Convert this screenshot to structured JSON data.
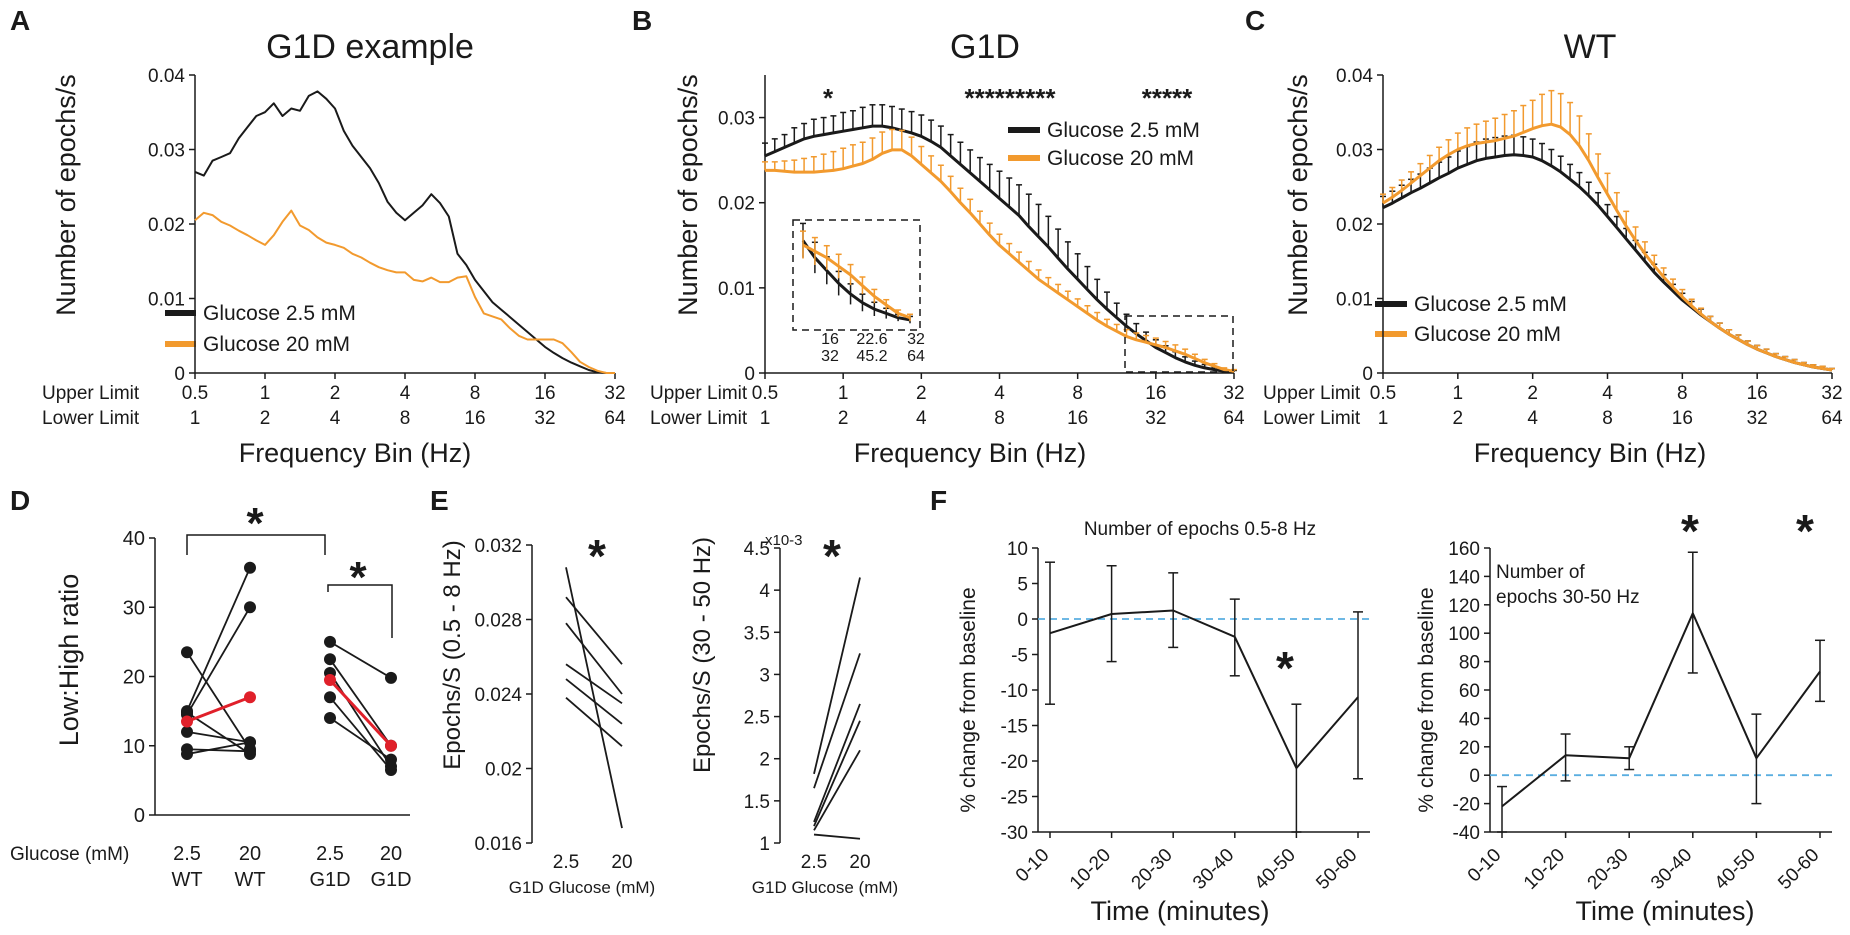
{
  "colors": {
    "black": "#1a1a1a",
    "orange": "#f29a2e",
    "red": "#e0202a",
    "blue": "#5aaee0"
  },
  "row_labels": {
    "upper": "Upper Limit",
    "lower": "Lower Limit",
    "freq_axis": "Frequency Bin (Hz)"
  },
  "chart_data": [
    {
      "panel": "A",
      "type": "line",
      "title": "G1D example",
      "ylabel": "Number of epochs/s",
      "xlabel": "Frequency Bin (Hz)",
      "ylim": [
        0,
        0.04
      ],
      "yticks": [
        "0",
        "0.01",
        "0.02",
        "0.03",
        "0.04"
      ],
      "upper_ticks": [
        "0.5",
        "1",
        "2",
        "4",
        "8",
        "16",
        "32"
      ],
      "lower_ticks": [
        "1",
        "2",
        "4",
        "8",
        "16",
        "32",
        "64"
      ],
      "legend": [
        "Glucose 2.5 mM",
        "Glucose 20 mM"
      ],
      "series": [
        {
          "name": "Glucose 2.5 mM",
          "color": "#1a1a1a",
          "values": [
            0.027,
            0.0265,
            0.0285,
            0.029,
            0.0295,
            0.0315,
            0.033,
            0.0345,
            0.035,
            0.0362,
            0.0345,
            0.0355,
            0.0352,
            0.0372,
            0.0378,
            0.0368,
            0.0355,
            0.0325,
            0.0305,
            0.029,
            0.0275,
            0.0255,
            0.023,
            0.0215,
            0.0205,
            0.0215,
            0.0225,
            0.024,
            0.0228,
            0.021,
            0.016,
            0.0145,
            0.0125,
            0.011,
            0.0095,
            0.0085,
            0.0075,
            0.0065,
            0.0055,
            0.0045,
            0.0035,
            0.0027,
            0.002,
            0.0014,
            0.0009,
            0.0004,
            0.0001,
            0,
            0
          ]
        },
        {
          "name": "Glucose 20 mM",
          "color": "#f29a2e",
          "values": [
            0.0205,
            0.0215,
            0.0212,
            0.0203,
            0.0198,
            0.0191,
            0.0185,
            0.0178,
            0.0172,
            0.0185,
            0.0203,
            0.0218,
            0.0198,
            0.0192,
            0.0182,
            0.0175,
            0.0172,
            0.0168,
            0.016,
            0.0155,
            0.0148,
            0.0142,
            0.0138,
            0.0135,
            0.0135,
            0.0125,
            0.0123,
            0.0128,
            0.0122,
            0.0122,
            0.0128,
            0.013,
            0.0102,
            0.008,
            0.0076,
            0.0072,
            0.006,
            0.005,
            0.0045,
            0.0045,
            0.0045,
            0.0045,
            0.004,
            0.0028,
            0.0015,
            0.0008,
            0.0003,
            0,
            0
          ]
        }
      ]
    },
    {
      "panel": "B",
      "type": "line",
      "title": "G1D",
      "ylabel": "Number of epochs/s",
      "xlabel": "Frequency Bin (Hz)",
      "ylim": [
        0,
        0.035
      ],
      "yticks": [
        "0",
        "0.01",
        "0.02",
        "0.03"
      ],
      "upper_ticks": [
        "0.5",
        "1",
        "2",
        "4",
        "8",
        "16",
        "32"
      ],
      "lower_ticks": [
        "1",
        "2",
        "4",
        "8",
        "16",
        "32",
        "64"
      ],
      "legend": [
        "Glucose 2.5 mM",
        "Glucose 20 mM"
      ],
      "significance": [
        "*",
        "*********",
        "*****"
      ],
      "inset_ticks_top": [
        "16",
        "22.6",
        "32"
      ],
      "inset_ticks_bottom": [
        "32",
        "45.2",
        "64"
      ],
      "series": [
        {
          "name": "Glucose 2.5 mM",
          "color": "#1a1a1a",
          "values": [
            0.0255,
            0.026,
            0.0265,
            0.027,
            0.0275,
            0.0278,
            0.028,
            0.0282,
            0.0284,
            0.0286,
            0.0288,
            0.029,
            0.029,
            0.0288,
            0.0285,
            0.0282,
            0.0278,
            0.0272,
            0.0265,
            0.0255,
            0.0245,
            0.0235,
            0.0225,
            0.0215,
            0.0205,
            0.0195,
            0.0185,
            0.0172,
            0.016,
            0.0148,
            0.0135,
            0.0122,
            0.011,
            0.0098,
            0.0086,
            0.0075,
            0.0065,
            0.0055,
            0.0046,
            0.0038,
            0.003,
            0.0024,
            0.0018,
            0.0013,
            0.0009,
            0.0006,
            0.0004,
            0.0002,
            0.0001
          ],
          "errors": [
            0.0015,
            0.0015,
            0.0015,
            0.0018,
            0.0018,
            0.002,
            0.002,
            0.002,
            0.0022,
            0.0022,
            0.0024,
            0.0025,
            0.0025,
            0.0025,
            0.0025,
            0.0025,
            0.0025,
            0.0025,
            0.0025,
            0.0025,
            0.0026,
            0.0027,
            0.0028,
            0.003,
            0.0032,
            0.0034,
            0.0036,
            0.0038,
            0.0038,
            0.0036,
            0.0034,
            0.0032,
            0.003,
            0.0027,
            0.0024,
            0.002,
            0.0017,
            0.0014,
            0.0012,
            0.001,
            0.0009,
            0.0008,
            0.0007,
            0.0006,
            0.0005,
            0.0004,
            0.0003,
            0.0002,
            0.0002
          ]
        },
        {
          "name": "Glucose 20 mM",
          "color": "#f29a2e",
          "values": [
            0.0238,
            0.0238,
            0.0237,
            0.0236,
            0.0236,
            0.0236,
            0.0237,
            0.0238,
            0.024,
            0.0243,
            0.0246,
            0.0251,
            0.0258,
            0.0262,
            0.0262,
            0.0255,
            0.0245,
            0.0235,
            0.0225,
            0.0213,
            0.02,
            0.0188,
            0.0175,
            0.0162,
            0.015,
            0.014,
            0.013,
            0.012,
            0.011,
            0.0102,
            0.0094,
            0.0086,
            0.0078,
            0.007,
            0.0062,
            0.0055,
            0.0049,
            0.0043,
            0.0039,
            0.0036,
            0.0033,
            0.003,
            0.0026,
            0.0022,
            0.0017,
            0.0012,
            0.0008,
            0.0004,
            0.0002
          ],
          "errors": [
            0.001,
            0.001,
            0.0012,
            0.0014,
            0.0016,
            0.0018,
            0.002,
            0.0022,
            0.0024,
            0.0025,
            0.0025,
            0.0025,
            0.0025,
            0.0024,
            0.0023,
            0.0022,
            0.0021,
            0.002,
            0.0019,
            0.0018,
            0.0017,
            0.0016,
            0.0015,
            0.0014,
            0.0013,
            0.0012,
            0.0012,
            0.0011,
            0.0011,
            0.001,
            0.001,
            0.001,
            0.0009,
            0.0009,
            0.0009,
            0.0008,
            0.0008,
            0.0008,
            0.0008,
            0.0008,
            0.0008,
            0.0007,
            0.0007,
            0.0006,
            0.0005,
            0.0004,
            0.0003,
            0.0002,
            0.0002
          ]
        }
      ]
    },
    {
      "panel": "C",
      "type": "line",
      "title": "WT",
      "ylabel": "Number of epochs/s",
      "xlabel": "Frequency Bin (Hz)",
      "ylim": [
        0,
        0.04
      ],
      "yticks": [
        "0",
        "0.01",
        "0.02",
        "0.03",
        "0.04"
      ],
      "upper_ticks": [
        "0.5",
        "1",
        "2",
        "4",
        "8",
        "16",
        "32"
      ],
      "lower_ticks": [
        "1",
        "2",
        "4",
        "8",
        "16",
        "32",
        "64"
      ],
      "legend": [
        "Glucose 2.5 mM",
        "Glucose 20 mM"
      ],
      "series": [
        {
          "name": "Glucose 2.5 mM",
          "color": "#1a1a1a",
          "values": [
            0.0222,
            0.0228,
            0.0235,
            0.0242,
            0.0248,
            0.0255,
            0.0262,
            0.0268,
            0.0275,
            0.028,
            0.0285,
            0.0288,
            0.029,
            0.0292,
            0.0293,
            0.0292,
            0.029,
            0.0285,
            0.0278,
            0.027,
            0.026,
            0.025,
            0.0238,
            0.0225,
            0.021,
            0.0195,
            0.018,
            0.0165,
            0.015,
            0.0135,
            0.0122,
            0.011,
            0.0098,
            0.0088,
            0.0078,
            0.0069,
            0.006,
            0.0052,
            0.0045,
            0.0038,
            0.0032,
            0.0027,
            0.0022,
            0.0018,
            0.0014,
            0.0011,
            0.0008,
            0.0006,
            0.0004
          ],
          "errors": [
            0.0015,
            0.0016,
            0.0017,
            0.0018,
            0.0019,
            0.002,
            0.0021,
            0.0022,
            0.0023,
            0.0024,
            0.0025,
            0.0026,
            0.0026,
            0.0026,
            0.0026,
            0.0025,
            0.0024,
            0.0023,
            0.0022,
            0.0021,
            0.002,
            0.0019,
            0.0018,
            0.0017,
            0.0016,
            0.0015,
            0.0014,
            0.0013,
            0.0012,
            0.0011,
            0.001,
            0.0009,
            0.0009,
            0.0008,
            0.0008,
            0.0007,
            0.0007,
            0.0006,
            0.0006,
            0.0005,
            0.0005,
            0.0005,
            0.0004,
            0.0004,
            0.0004,
            0.0003,
            0.0003,
            0.0003,
            0.0002
          ]
        },
        {
          "name": "Glucose 20 mM",
          "color": "#f29a2e",
          "values": [
            0.0228,
            0.0236,
            0.0245,
            0.0255,
            0.0265,
            0.0275,
            0.0285,
            0.0293,
            0.03,
            0.0305,
            0.0308,
            0.031,
            0.0312,
            0.0315,
            0.0318,
            0.0323,
            0.0328,
            0.0332,
            0.0334,
            0.033,
            0.032,
            0.0305,
            0.0285,
            0.0262,
            0.024,
            0.0218,
            0.0197,
            0.0178,
            0.016,
            0.0144,
            0.0129,
            0.0115,
            0.0102,
            0.009,
            0.0079,
            0.0069,
            0.006,
            0.0052,
            0.0045,
            0.0038,
            0.0032,
            0.0027,
            0.0022,
            0.0018,
            0.0014,
            0.0011,
            0.0008,
            0.0006,
            0.0004
          ],
          "errors": [
            0.0012,
            0.0013,
            0.0014,
            0.0015,
            0.0016,
            0.0017,
            0.0018,
            0.002,
            0.0022,
            0.0024,
            0.0026,
            0.0028,
            0.003,
            0.0032,
            0.0034,
            0.0036,
            0.0038,
            0.0042,
            0.0045,
            0.0045,
            0.0043,
            0.004,
            0.0036,
            0.0032,
            0.0028,
            0.0024,
            0.002,
            0.0018,
            0.0016,
            0.0014,
            0.0012,
            0.0011,
            0.001,
            0.0009,
            0.0008,
            0.0007,
            0.0007,
            0.0006,
            0.0006,
            0.0005,
            0.0005,
            0.0005,
            0.0004,
            0.0004,
            0.0004,
            0.0003,
            0.0003,
            0.0003,
            0.0002
          ]
        }
      ]
    },
    {
      "panel": "D",
      "type": "scatter",
      "ylabel": "Low:High ratio",
      "ylim": [
        0,
        40
      ],
      "yticks": [
        "0",
        "10",
        "20",
        "30",
        "40"
      ],
      "row_label": "Glucose (mM)",
      "categories": [
        [
          "2.5",
          "WT"
        ],
        [
          "20",
          "WT"
        ],
        [
          "2.5",
          "G1D"
        ],
        [
          "20",
          "G1D"
        ]
      ],
      "pairs": [
        {
          "group": "WT",
          "from": 23.5,
          "to": 9.5
        },
        {
          "group": "WT",
          "from": 15,
          "to": 35.7
        },
        {
          "group": "WT",
          "from": 14.5,
          "to": 30
        },
        {
          "group": "WT",
          "from": 12,
          "to": 10.5
        },
        {
          "group": "WT",
          "from": 9.5,
          "to": 9.2
        },
        {
          "group": "WT",
          "from": 8.8,
          "to": 10.5
        },
        {
          "group": "WT",
          "from": 14.8,
          "to": 8.8
        },
        {
          "group": "WT",
          "from": 13.5,
          "to": 17,
          "mean": true
        },
        {
          "group": "G1D",
          "from": 25,
          "to": 19.8
        },
        {
          "group": "G1D",
          "from": 22.5,
          "to": 10
        },
        {
          "group": "G1D",
          "from": 20.5,
          "to": 7
        },
        {
          "group": "G1D",
          "from": 17,
          "to": 6.5
        },
        {
          "group": "G1D",
          "from": 14,
          "to": 8
        },
        {
          "group": "G1D",
          "from": 19.5,
          "to": 10,
          "mean": true
        }
      ],
      "significance": [
        "*",
        "*"
      ]
    },
    {
      "panel": "E",
      "type": "line",
      "subplots": [
        {
          "ylabel": "Epochs/S (0.5 - 8 Hz)",
          "xlabel": "G1D Glucose (mM)",
          "ylim": [
            0.016,
            0.032
          ],
          "yticks": [
            "0.016",
            "0.02",
            "0.024",
            "0.028",
            "0.032"
          ],
          "categories": [
            "2.5",
            "20"
          ],
          "significance": "*",
          "pairs": [
            [
              0.0308,
              0.0168
            ],
            [
              0.0292,
              0.0256
            ],
            [
              0.0278,
              0.024
            ],
            [
              0.0256,
              0.0235
            ],
            [
              0.0248,
              0.0224
            ],
            [
              0.0238,
              0.0212
            ]
          ]
        },
        {
          "ylabel": "Epochs/S (30 - 50 Hz)",
          "xlabel": "G1D Glucose (mM)",
          "multiplier": "x10-3",
          "ylim": [
            1,
            4.5
          ],
          "yticks": [
            "1",
            "1.5",
            "2",
            "2.5",
            "3",
            "3.5",
            "4",
            "4.5"
          ],
          "categories": [
            "2.5",
            "20"
          ],
          "significance": "*",
          "pairs": [
            [
              1.82,
              4.15
            ],
            [
              1.65,
              3.25
            ],
            [
              1.25,
              2.65
            ],
            [
              1.2,
              2.45
            ],
            [
              1.15,
              2.1
            ],
            [
              1.1,
              1.05
            ]
          ]
        }
      ]
    },
    {
      "panel": "F",
      "type": "line",
      "subplots": [
        {
          "title": "Number of epochs 0.5-8 Hz",
          "ylabel": "% change from  baseline",
          "xlabel": "Time (minutes)",
          "ylim": [
            -30,
            10
          ],
          "yticks": [
            "-30",
            "-25",
            "-20",
            "-15",
            "-10",
            "-5",
            "0",
            "5",
            "10"
          ],
          "categories": [
            "0-10",
            "10-20",
            "20-30",
            "30-40",
            "40-50",
            "50-60"
          ],
          "values": [
            -2,
            0.7,
            1.2,
            -2.5,
            -21,
            -11
          ],
          "err_low": [
            -12,
            -6,
            -4,
            -8,
            -30,
            -22.5
          ],
          "err_high": [
            8,
            7.5,
            6.5,
            2.8,
            -12,
            1
          ],
          "significance": [
            "*"
          ]
        },
        {
          "title_lines": [
            "Number of",
            "epochs 30-50 Hz"
          ],
          "ylabel": "% change from  baseline",
          "xlabel": "Time (minutes)",
          "ylim": [
            -40,
            160
          ],
          "yticks": [
            "-40",
            "-20",
            "0",
            "20",
            "40",
            "60",
            "80",
            "100",
            "120",
            "140",
            "160"
          ],
          "categories": [
            "0-10",
            "10-20",
            "20-30",
            "30-40",
            "40-50",
            "50-60"
          ],
          "values": [
            -22,
            14,
            12,
            114,
            12,
            73
          ],
          "err_low": [
            -40,
            -4,
            4,
            72,
            -20,
            52
          ],
          "err_high": [
            -8,
            29,
            20,
            157,
            43,
            95
          ],
          "significance": [
            "*",
            "*"
          ]
        }
      ]
    }
  ]
}
